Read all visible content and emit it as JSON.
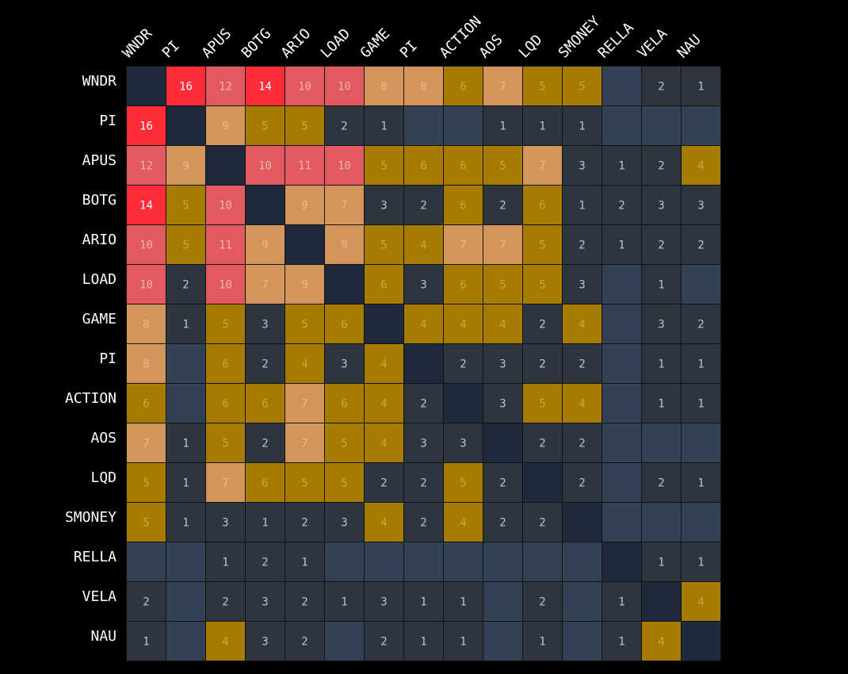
{
  "chart_data": {
    "type": "heatmap",
    "title": "",
    "labels": [
      "WNDR",
      "PI",
      "APUS",
      "BOTG",
      "ARIO",
      "LOAD",
      "GAME",
      "PI",
      "ACTION",
      "AOS",
      "LQD",
      "SMONEY",
      "RELLA",
      "VELA",
      "NAU"
    ],
    "matrix": [
      [
        null,
        16,
        12,
        14,
        10,
        10,
        8,
        8,
        6,
        7,
        5,
        5,
        0,
        2,
        1
      ],
      [
        16,
        null,
        9,
        5,
        5,
        2,
        1,
        0,
        0,
        1,
        1,
        1,
        0,
        0,
        0
      ],
      [
        12,
        9,
        null,
        10,
        11,
        10,
        5,
        6,
        6,
        5,
        7,
        3,
        1,
        2,
        4
      ],
      [
        14,
        5,
        10,
        null,
        9,
        7,
        3,
        2,
        6,
        2,
        6,
        1,
        2,
        3,
        3
      ],
      [
        10,
        5,
        11,
        9,
        null,
        9,
        5,
        4,
        7,
        7,
        5,
        2,
        1,
        2,
        2
      ],
      [
        10,
        2,
        10,
        7,
        9,
        null,
        6,
        3,
        6,
        5,
        5,
        3,
        0,
        1,
        0
      ],
      [
        8,
        1,
        5,
        3,
        5,
        6,
        null,
        4,
        4,
        4,
        2,
        4,
        0,
        3,
        2
      ],
      [
        8,
        0,
        6,
        2,
        4,
        3,
        4,
        null,
        2,
        3,
        2,
        2,
        0,
        1,
        1
      ],
      [
        6,
        0,
        6,
        6,
        7,
        6,
        4,
        2,
        null,
        3,
        5,
        4,
        0,
        1,
        1
      ],
      [
        7,
        1,
        5,
        2,
        7,
        5,
        4,
        3,
        3,
        null,
        2,
        2,
        0,
        0,
        0
      ],
      [
        5,
        1,
        7,
        6,
        5,
        5,
        2,
        2,
        5,
        2,
        null,
        2,
        0,
        2,
        1
      ],
      [
        5,
        1,
        3,
        1,
        2,
        3,
        4,
        2,
        4,
        2,
        2,
        null,
        0,
        0,
        0
      ],
      [
        0,
        0,
        1,
        2,
        1,
        0,
        0,
        0,
        0,
        0,
        0,
        0,
        null,
        1,
        1
      ],
      [
        2,
        0,
        2,
        3,
        2,
        1,
        3,
        1,
        1,
        0,
        2,
        0,
        1,
        null,
        4
      ],
      [
        1,
        0,
        4,
        3,
        2,
        0,
        2,
        1,
        1,
        0,
        1,
        0,
        1,
        4,
        null
      ]
    ],
    "colors": {
      "background": "#000000",
      "diagonal": "#1e293b",
      "zero": "#334155",
      "low": "#2d3540",
      "mid": "#a67c00",
      "high": "#d4955a",
      "higher": "#e05a5f",
      "highest": "#ff2d3a",
      "grid_line": "#111111"
    },
    "text_colors": {
      "low": "#c0c4ca",
      "mid": "#c9a449",
      "high": "#e8b993",
      "higher": "#f1b3b6",
      "highest": "#ffffff"
    }
  }
}
